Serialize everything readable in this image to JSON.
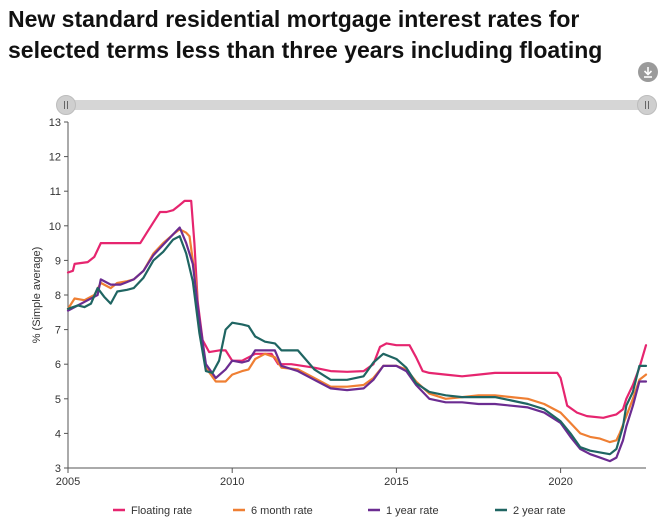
{
  "chart_data": {
    "type": "line",
    "title": "New standard residential mortgage interest rates for selected terms less than three years including floating",
    "xlabel": "",
    "ylabel": "% (Simple average)",
    "xlim": [
      2005,
      2022.6
    ],
    "ylim": [
      3,
      13
    ],
    "x_ticks": [
      "2005",
      "2010",
      "2015",
      "2020"
    ],
    "x_tick_values": [
      2005,
      2010,
      2015,
      2020
    ],
    "y_ticks": [
      "3",
      "4",
      "5",
      "6",
      "7",
      "8",
      "9",
      "10",
      "11",
      "12",
      "13"
    ],
    "y_tick_values": [
      3,
      4,
      5,
      6,
      7,
      8,
      9,
      10,
      11,
      12,
      13
    ],
    "grid": false,
    "legend_position": "bottom",
    "series": [
      {
        "name": "Floating rate",
        "color": "#e6256f",
        "points": [
          [
            2005,
            8.65
          ],
          [
            2005.15,
            8.7
          ],
          [
            2005.2,
            8.9
          ],
          [
            2005.6,
            8.95
          ],
          [
            2005.8,
            9.1
          ],
          [
            2006.0,
            9.5
          ],
          [
            2006.5,
            9.5
          ],
          [
            2007.0,
            9.5
          ],
          [
            2007.2,
            9.5
          ],
          [
            2007.4,
            9.8
          ],
          [
            2007.6,
            10.1
          ],
          [
            2007.8,
            10.4
          ],
          [
            2008.0,
            10.4
          ],
          [
            2008.2,
            10.45
          ],
          [
            2008.4,
            10.6
          ],
          [
            2008.55,
            10.72
          ],
          [
            2008.75,
            10.72
          ],
          [
            2008.85,
            9.5
          ],
          [
            2008.95,
            7.8
          ],
          [
            2009.1,
            6.7
          ],
          [
            2009.3,
            6.35
          ],
          [
            2009.6,
            6.4
          ],
          [
            2009.8,
            6.4
          ],
          [
            2010.0,
            6.1
          ],
          [
            2010.3,
            6.1
          ],
          [
            2010.5,
            6.2
          ],
          [
            2010.7,
            6.3
          ],
          [
            2010.9,
            6.3
          ],
          [
            2011.2,
            6.3
          ],
          [
            2011.4,
            6.0
          ],
          [
            2011.8,
            6.0
          ],
          [
            2012.5,
            5.9
          ],
          [
            2013.0,
            5.8
          ],
          [
            2013.5,
            5.78
          ],
          [
            2014.0,
            5.8
          ],
          [
            2014.3,
            6.0
          ],
          [
            2014.5,
            6.5
          ],
          [
            2014.7,
            6.6
          ],
          [
            2015.0,
            6.55
          ],
          [
            2015.4,
            6.55
          ],
          [
            2015.6,
            6.2
          ],
          [
            2015.8,
            5.8
          ],
          [
            2016.0,
            5.75
          ],
          [
            2016.5,
            5.7
          ],
          [
            2017.0,
            5.65
          ],
          [
            2017.5,
            5.7
          ],
          [
            2018.0,
            5.75
          ],
          [
            2018.5,
            5.75
          ],
          [
            2019.0,
            5.75
          ],
          [
            2019.5,
            5.75
          ],
          [
            2019.9,
            5.75
          ],
          [
            2020.0,
            5.6
          ],
          [
            2020.2,
            4.8
          ],
          [
            2020.5,
            4.6
          ],
          [
            2020.8,
            4.5
          ],
          [
            2021.3,
            4.45
          ],
          [
            2021.5,
            4.5
          ],
          [
            2021.7,
            4.55
          ],
          [
            2021.9,
            4.7
          ],
          [
            2022.0,
            5.0
          ],
          [
            2022.2,
            5.4
          ],
          [
            2022.4,
            5.9
          ],
          [
            2022.6,
            6.55
          ]
        ]
      },
      {
        "name": "6 month rate",
        "color": "#ef7f33",
        "points": [
          [
            2005,
            7.6
          ],
          [
            2005.2,
            7.9
          ],
          [
            2005.5,
            7.85
          ],
          [
            2005.8,
            8.0
          ],
          [
            2006.0,
            8.35
          ],
          [
            2006.3,
            8.2
          ],
          [
            2006.5,
            8.35
          ],
          [
            2006.8,
            8.4
          ],
          [
            2007.0,
            8.45
          ],
          [
            2007.3,
            8.7
          ],
          [
            2007.6,
            9.2
          ],
          [
            2007.9,
            9.5
          ],
          [
            2008.2,
            9.75
          ],
          [
            2008.4,
            9.9
          ],
          [
            2008.6,
            9.8
          ],
          [
            2008.7,
            9.7
          ],
          [
            2008.9,
            8.3
          ],
          [
            2009.0,
            7.0
          ],
          [
            2009.2,
            5.9
          ],
          [
            2009.5,
            5.5
          ],
          [
            2009.8,
            5.5
          ],
          [
            2010.0,
            5.7
          ],
          [
            2010.3,
            5.8
          ],
          [
            2010.5,
            5.85
          ],
          [
            2010.7,
            6.15
          ],
          [
            2011.0,
            6.3
          ],
          [
            2011.3,
            6.2
          ],
          [
            2011.5,
            5.9
          ],
          [
            2012.0,
            5.85
          ],
          [
            2012.5,
            5.6
          ],
          [
            2013.0,
            5.35
          ],
          [
            2013.5,
            5.35
          ],
          [
            2014.0,
            5.4
          ],
          [
            2014.3,
            5.6
          ],
          [
            2014.6,
            5.95
          ],
          [
            2015.0,
            5.95
          ],
          [
            2015.3,
            5.85
          ],
          [
            2015.6,
            5.5
          ],
          [
            2016.0,
            5.15
          ],
          [
            2016.5,
            5.0
          ],
          [
            2017.0,
            5.05
          ],
          [
            2017.5,
            5.1
          ],
          [
            2018.0,
            5.1
          ],
          [
            2018.5,
            5.05
          ],
          [
            2019.0,
            5.0
          ],
          [
            2019.5,
            4.85
          ],
          [
            2020.0,
            4.6
          ],
          [
            2020.3,
            4.3
          ],
          [
            2020.6,
            4.0
          ],
          [
            2020.9,
            3.9
          ],
          [
            2021.2,
            3.85
          ],
          [
            2021.5,
            3.75
          ],
          [
            2021.7,
            3.8
          ],
          [
            2021.8,
            4.0
          ],
          [
            2022.0,
            4.5
          ],
          [
            2022.2,
            5.0
          ],
          [
            2022.4,
            5.55
          ],
          [
            2022.6,
            5.7
          ]
        ]
      },
      {
        "name": "1 year rate",
        "color": "#6b2c91",
        "points": [
          [
            2005,
            7.55
          ],
          [
            2005.3,
            7.7
          ],
          [
            2005.6,
            7.85
          ],
          [
            2005.9,
            8.0
          ],
          [
            2006.0,
            8.45
          ],
          [
            2006.3,
            8.3
          ],
          [
            2006.6,
            8.3
          ],
          [
            2007.0,
            8.45
          ],
          [
            2007.3,
            8.7
          ],
          [
            2007.6,
            9.15
          ],
          [
            2007.9,
            9.45
          ],
          [
            2008.2,
            9.75
          ],
          [
            2008.4,
            9.95
          ],
          [
            2008.6,
            9.5
          ],
          [
            2008.8,
            8.9
          ],
          [
            2009.0,
            7.3
          ],
          [
            2009.2,
            6.0
          ],
          [
            2009.5,
            5.6
          ],
          [
            2009.8,
            5.85
          ],
          [
            2010.0,
            6.1
          ],
          [
            2010.3,
            6.05
          ],
          [
            2010.5,
            6.1
          ],
          [
            2010.7,
            6.4
          ],
          [
            2011.0,
            6.4
          ],
          [
            2011.3,
            6.4
          ],
          [
            2011.5,
            5.95
          ],
          [
            2012.0,
            5.8
          ],
          [
            2012.5,
            5.55
          ],
          [
            2013.0,
            5.3
          ],
          [
            2013.5,
            5.25
          ],
          [
            2014.0,
            5.3
          ],
          [
            2014.3,
            5.55
          ],
          [
            2014.6,
            5.95
          ],
          [
            2015.0,
            5.95
          ],
          [
            2015.3,
            5.8
          ],
          [
            2015.6,
            5.4
          ],
          [
            2016.0,
            5.0
          ],
          [
            2016.5,
            4.9
          ],
          [
            2017.0,
            4.9
          ],
          [
            2017.5,
            4.85
          ],
          [
            2018.0,
            4.85
          ],
          [
            2018.5,
            4.8
          ],
          [
            2019.0,
            4.75
          ],
          [
            2019.5,
            4.6
          ],
          [
            2020.0,
            4.3
          ],
          [
            2020.3,
            3.9
          ],
          [
            2020.6,
            3.55
          ],
          [
            2020.9,
            3.4
          ],
          [
            2021.2,
            3.3
          ],
          [
            2021.5,
            3.2
          ],
          [
            2021.7,
            3.3
          ],
          [
            2021.9,
            3.8
          ],
          [
            2022.0,
            4.2
          ],
          [
            2022.2,
            4.8
          ],
          [
            2022.4,
            5.5
          ],
          [
            2022.6,
            5.5
          ]
        ]
      },
      {
        "name": "2 year rate",
        "color": "#1f6562",
        "points": [
          [
            2005,
            7.6
          ],
          [
            2005.3,
            7.7
          ],
          [
            2005.5,
            7.65
          ],
          [
            2005.7,
            7.75
          ],
          [
            2005.9,
            8.2
          ],
          [
            2006.1,
            7.95
          ],
          [
            2006.3,
            7.75
          ],
          [
            2006.5,
            8.1
          ],
          [
            2006.8,
            8.15
          ],
          [
            2007.0,
            8.2
          ],
          [
            2007.3,
            8.5
          ],
          [
            2007.6,
            9.0
          ],
          [
            2007.9,
            9.25
          ],
          [
            2008.2,
            9.6
          ],
          [
            2008.4,
            9.7
          ],
          [
            2008.6,
            9.2
          ],
          [
            2008.8,
            8.4
          ],
          [
            2009.0,
            6.9
          ],
          [
            2009.2,
            5.8
          ],
          [
            2009.4,
            5.75
          ],
          [
            2009.6,
            6.1
          ],
          [
            2009.8,
            7.0
          ],
          [
            2010.0,
            7.2
          ],
          [
            2010.3,
            7.15
          ],
          [
            2010.5,
            7.1
          ],
          [
            2010.7,
            6.8
          ],
          [
            2011.0,
            6.65
          ],
          [
            2011.3,
            6.6
          ],
          [
            2011.5,
            6.4
          ],
          [
            2012.0,
            6.4
          ],
          [
            2012.5,
            5.85
          ],
          [
            2013.0,
            5.55
          ],
          [
            2013.5,
            5.55
          ],
          [
            2014.0,
            5.65
          ],
          [
            2014.3,
            6.05
          ],
          [
            2014.6,
            6.3
          ],
          [
            2015.0,
            6.15
          ],
          [
            2015.3,
            5.9
          ],
          [
            2015.6,
            5.45
          ],
          [
            2016.0,
            5.2
          ],
          [
            2016.5,
            5.1
          ],
          [
            2017.0,
            5.05
          ],
          [
            2017.5,
            5.05
          ],
          [
            2018.0,
            5.05
          ],
          [
            2018.5,
            4.95
          ],
          [
            2019.0,
            4.85
          ],
          [
            2019.5,
            4.7
          ],
          [
            2020.0,
            4.35
          ],
          [
            2020.3,
            4.0
          ],
          [
            2020.6,
            3.6
          ],
          [
            2020.9,
            3.5
          ],
          [
            2021.2,
            3.45
          ],
          [
            2021.5,
            3.4
          ],
          [
            2021.7,
            3.55
          ],
          [
            2021.9,
            4.2
          ],
          [
            2022.0,
            4.8
          ],
          [
            2022.2,
            5.2
          ],
          [
            2022.4,
            5.95
          ],
          [
            2022.6,
            5.95
          ]
        ]
      }
    ]
  }
}
